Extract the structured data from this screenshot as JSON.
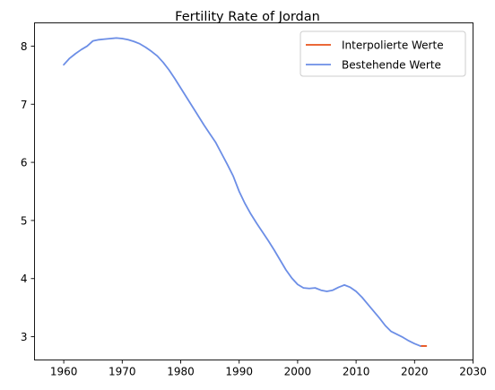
{
  "chart_data": {
    "type": "line",
    "title": "Fertility Rate of Jordan",
    "xlabel": "",
    "ylabel": "",
    "xlim": [
      1955,
      2030
    ],
    "ylim": [
      2.6,
      8.4
    ],
    "x_ticks": [
      1960,
      1970,
      1980,
      1990,
      2000,
      2010,
      2020,
      2030
    ],
    "y_ticks": [
      3,
      4,
      5,
      6,
      7,
      8
    ],
    "grid": false,
    "legend_position": "upper-right",
    "series": [
      {
        "name": "Interpolierte Werte",
        "color": "#E8521B",
        "x": [
          2021,
          2022
        ],
        "y": [
          2.84,
          2.84
        ]
      },
      {
        "name": "Bestehende Werte",
        "color": "#6C8EE6",
        "x": [
          1960,
          1961,
          1962,
          1963,
          1964,
          1965,
          1966,
          1967,
          1968,
          1969,
          1970,
          1971,
          1972,
          1973,
          1974,
          1975,
          1976,
          1977,
          1978,
          1979,
          1980,
          1981,
          1982,
          1983,
          1984,
          1985,
          1986,
          1987,
          1988,
          1989,
          1990,
          1991,
          1992,
          1993,
          1994,
          1995,
          1996,
          1997,
          1998,
          1999,
          2000,
          2001,
          2002,
          2003,
          2004,
          2005,
          2006,
          2007,
          2008,
          2009,
          2010,
          2011,
          2012,
          2013,
          2014,
          2015,
          2016,
          2017,
          2018,
          2019,
          2020,
          2021
        ],
        "y": [
          7.68,
          7.79,
          7.87,
          7.94,
          8.0,
          8.09,
          8.11,
          8.12,
          8.13,
          8.14,
          8.13,
          8.11,
          8.08,
          8.04,
          7.98,
          7.91,
          7.83,
          7.72,
          7.59,
          7.44,
          7.28,
          7.12,
          6.96,
          6.8,
          6.64,
          6.49,
          6.34,
          6.15,
          5.96,
          5.76,
          5.5,
          5.29,
          5.11,
          4.95,
          4.8,
          4.65,
          4.49,
          4.32,
          4.15,
          4.01,
          3.9,
          3.84,
          3.83,
          3.84,
          3.8,
          3.78,
          3.8,
          3.85,
          3.89,
          3.85,
          3.78,
          3.68,
          3.56,
          3.44,
          3.32,
          3.19,
          3.09,
          3.04,
          2.99,
          2.93,
          2.88,
          2.84
        ]
      }
    ]
  }
}
